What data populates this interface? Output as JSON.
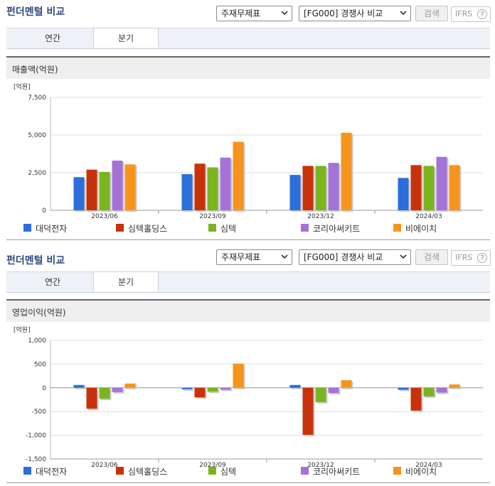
{
  "header": {
    "title": "펀더멘털 비교",
    "select_theme": "주재무제표",
    "select_group": "[FG000] 경쟁사 비교",
    "search_label": "검색",
    "ifrs_label": "IFRS",
    "help_glyph": "?"
  },
  "tabs": [
    {
      "label": "연간",
      "active": false
    },
    {
      "label": "분기",
      "active": true
    }
  ],
  "legend": [
    {
      "name": "대덕전자",
      "color": "#2a6fdb"
    },
    {
      "name": "심텍홀딩스",
      "color": "#c8320b"
    },
    {
      "name": "심텍",
      "color": "#7ab51d"
    },
    {
      "name": "코리아써키트",
      "color": "#a473d8"
    },
    {
      "name": "비에이치",
      "color": "#f7941d"
    }
  ],
  "chart_data": [
    {
      "type": "bar",
      "title": "매출액(억원)",
      "unit_label": "[억원]",
      "categories": [
        "2023/06",
        "2023/09",
        "2023/12",
        "2024/03"
      ],
      "ylim": [
        0,
        7500
      ],
      "yticks": [
        0,
        2500,
        5000,
        7500
      ],
      "ytick_labels": [
        "0",
        "2,500",
        "5,000",
        "7,500"
      ],
      "grid": true,
      "legend_position": "bottom",
      "series": [
        {
          "name": "대덕전자",
          "values": [
            2200,
            2400,
            2350,
            2150
          ]
        },
        {
          "name": "심텍홀딩스",
          "values": [
            2700,
            3100,
            2950,
            3000
          ]
        },
        {
          "name": "심텍",
          "values": [
            2550,
            2850,
            2950,
            2950
          ]
        },
        {
          "name": "코리아써키트",
          "values": [
            3300,
            3500,
            3150,
            3550
          ]
        },
        {
          "name": "비에이치",
          "values": [
            3050,
            4550,
            5150,
            3000
          ]
        }
      ]
    },
    {
      "type": "bar",
      "title": "영업이익(억원)",
      "unit_label": "[억원]",
      "categories": [
        "2023/06",
        "2023/09",
        "2023/12",
        "2024/03"
      ],
      "ylim": [
        -1500,
        1000
      ],
      "yticks": [
        -1500,
        -1000,
        -500,
        0,
        500,
        1000
      ],
      "ytick_labels": [
        "-1,500",
        "-1,000",
        "-500",
        "0",
        "500",
        "1,000"
      ],
      "grid": true,
      "legend_position": "bottom",
      "series": [
        {
          "name": "대덕전자",
          "values": [
            60,
            -30,
            60,
            -40
          ]
        },
        {
          "name": "심텍홀딩스",
          "values": [
            -440,
            -200,
            -990,
            -480
          ]
        },
        {
          "name": "심텍",
          "values": [
            -230,
            -80,
            -300,
            -180
          ]
        },
        {
          "name": "코리아써키트",
          "values": [
            -90,
            -40,
            -110,
            -100
          ]
        },
        {
          "name": "비에이치",
          "values": [
            90,
            510,
            160,
            70
          ]
        }
      ]
    }
  ]
}
